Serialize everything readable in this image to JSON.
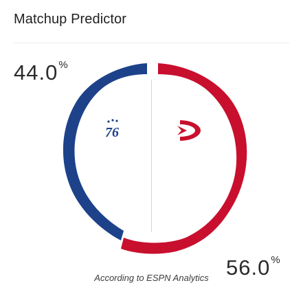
{
  "widget": {
    "title": "Matchup Predictor",
    "footer": "According to ESPN Analytics"
  },
  "teams": {
    "left": {
      "logo_text": "76",
      "logo_icon": "sixers-logo-icon",
      "win_pct": "44.0",
      "pct_symbol": "%",
      "color": "#1d428a"
    },
    "right": {
      "logo_icon": "hawks-logo-icon",
      "win_pct": "56.0",
      "pct_symbol": "%",
      "color": "#c8102e"
    }
  }
}
